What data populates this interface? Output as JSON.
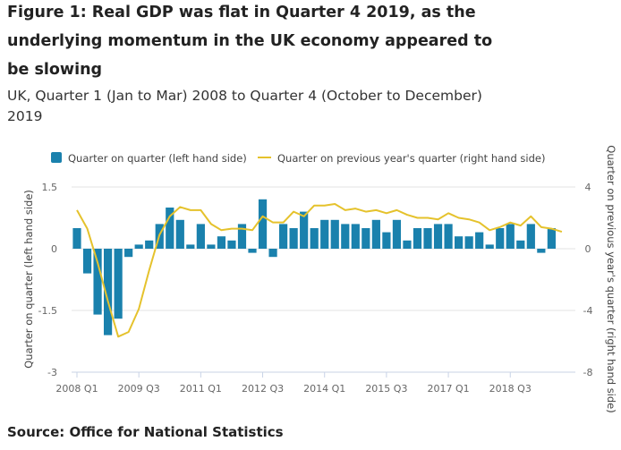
{
  "title": "Figure 1: Real GDP was flat in Quarter 4 2019, as the underlying momentum in the UK economy appeared to be slowing",
  "subtitle": "UK, Quarter 1 (Jan to Mar) 2008 to Quarter 4 (October to December) 2019",
  "source": "Source: Office for National Statistics",
  "chart_data": {
    "type": "bar+line",
    "categories": [
      "2008 Q1",
      "2008 Q2",
      "2008 Q3",
      "2008 Q4",
      "2009 Q1",
      "2009 Q2",
      "2009 Q3",
      "2009 Q4",
      "2010 Q1",
      "2010 Q2",
      "2010 Q3",
      "2010 Q4",
      "2011 Q1",
      "2011 Q2",
      "2011 Q3",
      "2011 Q4",
      "2012 Q1",
      "2012 Q2",
      "2012 Q3",
      "2012 Q4",
      "2013 Q1",
      "2013 Q2",
      "2013 Q3",
      "2013 Q4",
      "2014 Q1",
      "2014 Q2",
      "2014 Q3",
      "2014 Q4",
      "2015 Q1",
      "2015 Q2",
      "2015 Q3",
      "2015 Q4",
      "2016 Q1",
      "2016 Q2",
      "2016 Q3",
      "2016 Q4",
      "2017 Q1",
      "2017 Q2",
      "2017 Q3",
      "2017 Q4",
      "2018 Q1",
      "2018 Q2",
      "2018 Q3",
      "2018 Q4",
      "2019 Q1",
      "2019 Q2",
      "2019 Q3",
      "2019 Q4"
    ],
    "x_tick_labels": [
      "2008 Q1",
      "2009 Q3",
      "2011 Q1",
      "2012 Q3",
      "2014 Q1",
      "2015 Q3",
      "2017 Q1",
      "2018 Q3"
    ],
    "series": [
      {
        "name": "Quarter on quarter (left hand side)",
        "type": "bar",
        "axis": "left",
        "color": "#1a81ad",
        "values": [
          0.5,
          -0.6,
          -1.6,
          -2.1,
          -1.7,
          -0.2,
          0.1,
          0.2,
          0.6,
          1.0,
          0.7,
          0.1,
          0.6,
          0.1,
          0.3,
          0.2,
          0.6,
          -0.1,
          1.2,
          -0.2,
          0.6,
          0.5,
          0.9,
          0.5,
          0.7,
          0.7,
          0.6,
          0.6,
          0.5,
          0.7,
          0.4,
          0.7,
          0.2,
          0.5,
          0.5,
          0.6,
          0.6,
          0.3,
          0.3,
          0.4,
          0.1,
          0.5,
          0.6,
          0.2,
          0.6,
          -0.1,
          0.5,
          0.0
        ]
      },
      {
        "name": "Quarter on previous year's quarter (right hand side)",
        "type": "line",
        "axis": "right",
        "color": "#e5c22c",
        "values": [
          2.5,
          1.3,
          -0.9,
          -3.4,
          -5.7,
          -5.4,
          -3.9,
          -1.4,
          0.9,
          2.1,
          2.7,
          2.5,
          2.5,
          1.6,
          1.2,
          1.3,
          1.3,
          1.2,
          2.1,
          1.7,
          1.7,
          2.4,
          2.1,
          2.8,
          2.8,
          2.9,
          2.5,
          2.6,
          2.4,
          2.5,
          2.3,
          2.5,
          2.2,
          2.0,
          2.0,
          1.9,
          2.3,
          2.0,
          1.9,
          1.7,
          1.2,
          1.4,
          1.7,
          1.5,
          2.1,
          1.4,
          1.3,
          1.1
        ]
      }
    ],
    "y_left": {
      "label": "Quarter on quarter (left hand side)",
      "range": [
        -3,
        1.5
      ],
      "ticks": [
        "1.5",
        "0",
        "-1.5",
        "-3"
      ]
    },
    "y_right": {
      "label": "Quarter on previous year's quarter (right hand side)",
      "range": [
        -8,
        4
      ],
      "ticks": [
        "4",
        "0",
        "-4",
        "-8"
      ]
    },
    "grid": true,
    "legend": "top"
  }
}
